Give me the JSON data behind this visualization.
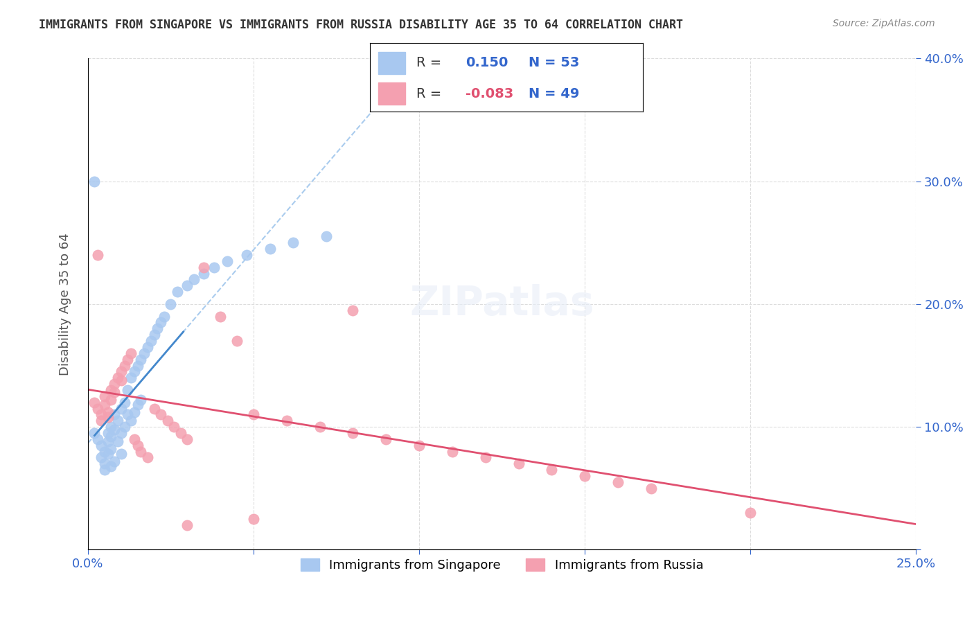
{
  "title": "IMMIGRANTS FROM SINGAPORE VS IMMIGRANTS FROM RUSSIA DISABILITY AGE 35 TO 64 CORRELATION CHART",
  "source": "Source: ZipAtlas.com",
  "xlabel": "",
  "ylabel": "Disability Age 35 to 64",
  "xlim": [
    0.0,
    0.25
  ],
  "ylim": [
    0.0,
    0.4
  ],
  "xticks": [
    0.0,
    0.05,
    0.1,
    0.15,
    0.2,
    0.25
  ],
  "yticks": [
    0.0,
    0.1,
    0.2,
    0.3,
    0.4
  ],
  "xticklabels": [
    "0.0%",
    "",
    "",
    "",
    "",
    "25.0%"
  ],
  "yticklabels": [
    "",
    "10.0%",
    "20.0%",
    "30.0%",
    "40.0%"
  ],
  "singapore_R": 0.15,
  "singapore_N": 53,
  "russia_R": -0.083,
  "russia_N": 49,
  "singapore_color": "#a8c8f0",
  "russia_color": "#f4a0b0",
  "singapore_line_color": "#4488cc",
  "russia_line_color": "#e05070",
  "trend_line_color": "#aaccee",
  "singapore_x": [
    0.002,
    0.003,
    0.004,
    0.004,
    0.005,
    0.005,
    0.005,
    0.006,
    0.006,
    0.006,
    0.007,
    0.007,
    0.007,
    0.007,
    0.008,
    0.008,
    0.008,
    0.009,
    0.009,
    0.01,
    0.01,
    0.01,
    0.011,
    0.011,
    0.012,
    0.012,
    0.013,
    0.013,
    0.014,
    0.014,
    0.015,
    0.015,
    0.016,
    0.016,
    0.017,
    0.018,
    0.019,
    0.02,
    0.021,
    0.022,
    0.023,
    0.025,
    0.027,
    0.03,
    0.032,
    0.035,
    0.038,
    0.042,
    0.048,
    0.055,
    0.062,
    0.072,
    0.002
  ],
  "singapore_y": [
    0.095,
    0.09,
    0.085,
    0.075,
    0.08,
    0.07,
    0.065,
    0.095,
    0.088,
    0.078,
    0.1,
    0.092,
    0.082,
    0.068,
    0.11,
    0.098,
    0.072,
    0.105,
    0.088,
    0.115,
    0.095,
    0.078,
    0.12,
    0.1,
    0.13,
    0.11,
    0.14,
    0.105,
    0.145,
    0.112,
    0.15,
    0.118,
    0.155,
    0.122,
    0.16,
    0.165,
    0.17,
    0.175,
    0.18,
    0.185,
    0.19,
    0.2,
    0.21,
    0.215,
    0.22,
    0.225,
    0.23,
    0.235,
    0.24,
    0.245,
    0.25,
    0.255,
    0.3
  ],
  "russia_x": [
    0.002,
    0.003,
    0.004,
    0.004,
    0.005,
    0.005,
    0.006,
    0.006,
    0.007,
    0.007,
    0.008,
    0.008,
    0.009,
    0.01,
    0.01,
    0.011,
    0.012,
    0.013,
    0.014,
    0.015,
    0.016,
    0.018,
    0.02,
    0.022,
    0.024,
    0.026,
    0.028,
    0.03,
    0.035,
    0.04,
    0.045,
    0.05,
    0.06,
    0.07,
    0.08,
    0.09,
    0.1,
    0.11,
    0.12,
    0.13,
    0.14,
    0.15,
    0.16,
    0.17,
    0.03,
    0.05,
    0.08,
    0.003,
    0.2
  ],
  "russia_y": [
    0.12,
    0.115,
    0.11,
    0.105,
    0.125,
    0.118,
    0.112,
    0.108,
    0.13,
    0.122,
    0.135,
    0.128,
    0.14,
    0.145,
    0.138,
    0.15,
    0.155,
    0.16,
    0.09,
    0.085,
    0.08,
    0.075,
    0.115,
    0.11,
    0.105,
    0.1,
    0.095,
    0.09,
    0.23,
    0.19,
    0.17,
    0.11,
    0.105,
    0.1,
    0.095,
    0.09,
    0.085,
    0.08,
    0.075,
    0.07,
    0.065,
    0.06,
    0.055,
    0.05,
    0.02,
    0.025,
    0.195,
    0.24,
    0.03
  ]
}
